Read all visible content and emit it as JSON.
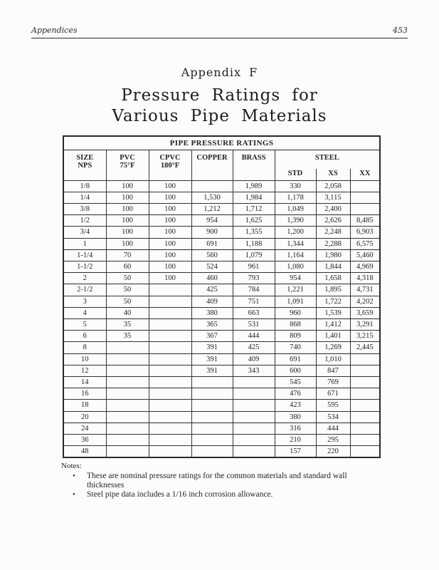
{
  "page": {
    "running_header": {
      "left": "Appendices",
      "page_number": "453"
    },
    "appendix_label": "Appendix F",
    "title": [
      "Pressure Ratings for",
      "Various Pipe Materials"
    ]
  },
  "table": {
    "title": "PIPE PRESSURE RATINGS",
    "columns": [
      {
        "label": "SIZE",
        "sub": "NPS"
      },
      {
        "label": "PVC",
        "sub": "75°F"
      },
      {
        "label": "CPVC",
        "sub": "180°F"
      },
      {
        "label": "COPPER",
        "sub": ""
      },
      {
        "label": "BRASS",
        "sub": ""
      }
    ],
    "steel_group": {
      "label": "STEEL",
      "sub_columns": [
        "STD",
        "XS",
        "XX"
      ]
    },
    "rows": [
      [
        "1/8",
        "100",
        "100",
        "",
        "1,989",
        "330",
        "2,058",
        ""
      ],
      [
        "1/4",
        "100",
        "100",
        "1,530",
        "1,984",
        "1,178",
        "3,115",
        ""
      ],
      [
        "3/8",
        "100",
        "100",
        "1,212",
        "1,712",
        "1,049",
        "2,400",
        ""
      ],
      [
        "1/2",
        "100",
        "100",
        "954",
        "1,625",
        "1,390",
        "2,626",
        "8,485"
      ],
      [
        "3/4",
        "100",
        "100",
        "900",
        "1,355",
        "1,200",
        "2,248",
        "6,903"
      ],
      [
        "1",
        "100",
        "100",
        "691",
        "1,188",
        "1,344",
        "2,288",
        "6,575"
      ],
      [
        "1-1/4",
        "70",
        "100",
        "560",
        "1,079",
        "1,164",
        "1,980",
        "5,460"
      ],
      [
        "1-1/2",
        "60",
        "100",
        "524",
        "961",
        "1,080",
        "1,844",
        "4,969"
      ],
      [
        "2",
        "50",
        "100",
        "460",
        "793",
        "954",
        "1,658",
        "4,318"
      ],
      [
        "2-1/2",
        "50",
        "",
        "425",
        "784",
        "1,221",
        "1,895",
        "4,731"
      ],
      [
        "3",
        "50",
        "",
        "409",
        "751",
        "1,091",
        "1,722",
        "4,202"
      ],
      [
        "4",
        "40",
        "",
        "380",
        "663",
        "960",
        "1,539",
        "3,659"
      ],
      [
        "5",
        "35",
        "",
        "365",
        "531",
        "868",
        "1,412",
        "3,291"
      ],
      [
        "6",
        "35",
        "",
        "367",
        "444",
        "809",
        "1,401",
        "3,215"
      ],
      [
        "8",
        "",
        "",
        "391",
        "425",
        "740",
        "1,269",
        "2,445"
      ],
      [
        "10",
        "",
        "",
        "391",
        "409",
        "691",
        "1,010",
        ""
      ],
      [
        "12",
        "",
        "",
        "391",
        "343",
        "600",
        "847",
        ""
      ],
      [
        "14",
        "",
        "",
        "",
        "",
        "545",
        "769",
        ""
      ],
      [
        "16",
        "",
        "",
        "",
        "",
        "476",
        "671",
        ""
      ],
      [
        "18",
        "",
        "",
        "",
        "",
        "423",
        "595",
        ""
      ],
      [
        "20",
        "",
        "",
        "",
        "",
        "380",
        "534",
        ""
      ],
      [
        "24",
        "",
        "",
        "",
        "",
        "316",
        "444",
        ""
      ],
      [
        "36",
        "",
        "",
        "",
        "",
        "210",
        "295",
        ""
      ],
      [
        "48",
        "",
        "",
        "",
        "",
        "157",
        "220",
        ""
      ]
    ]
  },
  "notes": {
    "label": "Notes:",
    "bullet": "•",
    "items": [
      "These are nominal pressure ratings for the common materials and standard wall thicknesses",
      "Steel pipe data includes a 1/16 inch corrosion allowance."
    ]
  }
}
